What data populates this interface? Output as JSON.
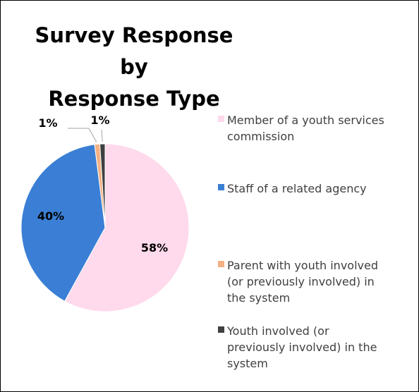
{
  "chart_data": {
    "type": "pie",
    "title": "Survey Response by Response Type",
    "title_lines": [
      "Survey Response by",
      "Response Type"
    ],
    "slices": [
      {
        "label": "Member of a youth services commission",
        "legend_lines": [
          "Member of a youth services",
          "commission"
        ],
        "value": 58,
        "display": "58%",
        "color": "#FFD9EC"
      },
      {
        "label": "Staff of a related agency",
        "legend_lines": [
          "Staff of a related agency"
        ],
        "value": 40,
        "display": "40%",
        "color": "#3A7FD5"
      },
      {
        "label": "Parent with youth involved (or previously involved) in the system",
        "legend_lines": [
          "Parent with youth involved",
          "(or previously involved) in",
          "the system"
        ],
        "value": 1,
        "display": "1%",
        "color": "#F4B183"
      },
      {
        "label": "Youth involved (or previously involved) in the system",
        "legend_lines": [
          "Youth involved (or",
          "previously involved) in the",
          "system"
        ],
        "value": 1,
        "display": "1%",
        "color": "#404040"
      }
    ],
    "legend_position": "right",
    "leader_color": "#A5A5A5"
  }
}
